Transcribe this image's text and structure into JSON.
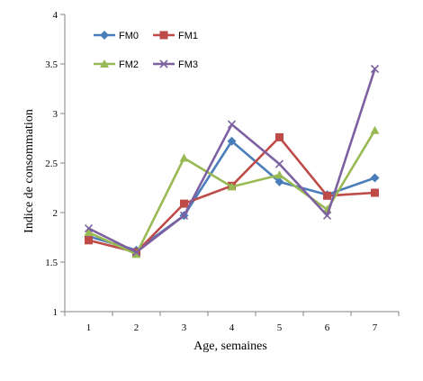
{
  "chart_data": {
    "type": "line",
    "title": "",
    "xlabel": "Age, semaines",
    "ylabel": "Indice de consommation",
    "categories": [
      "1",
      "2",
      "3",
      "4",
      "5",
      "6",
      "7"
    ],
    "yticks": [
      "1",
      "1.5",
      "2",
      "2.5",
      "3",
      "3.5",
      "4"
    ],
    "ylim": [
      1,
      4
    ],
    "grid": false,
    "legend_position": "top-left",
    "series": [
      {
        "name": "FM0",
        "color": "#4a7ebb",
        "marker": "diamond",
        "values": [
          1.76,
          1.62,
          1.97,
          2.72,
          2.31,
          2.18,
          2.35
        ]
      },
      {
        "name": "FM1",
        "color": "#be4b48",
        "marker": "square",
        "values": [
          1.72,
          1.6,
          2.09,
          2.27,
          2.76,
          2.17,
          2.2
        ]
      },
      {
        "name": "FM2",
        "color": "#98b954",
        "marker": "triangle",
        "values": [
          1.8,
          1.58,
          2.55,
          2.26,
          2.38,
          2.03,
          2.83
        ]
      },
      {
        "name": "FM3",
        "color": "#7d60a0",
        "marker": "x",
        "values": [
          1.84,
          1.6,
          1.97,
          2.89,
          2.49,
          1.97,
          3.45
        ]
      }
    ]
  }
}
